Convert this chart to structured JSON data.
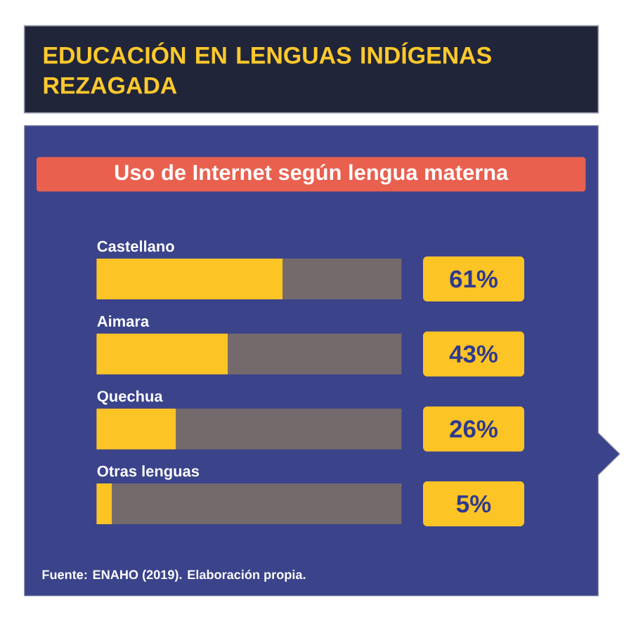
{
  "chart_data": {
    "type": "bar",
    "title": "EDUCACIÓN EN LENGUAS INDÍGENAS REZAGADA",
    "subtitle": "Uso de Internet según lengua materna",
    "categories": [
      "Castellano",
      "Aimara",
      "Quechua",
      "Otras lenguas"
    ],
    "orientation": "horizontal",
    "stacked": true,
    "series": [
      {
        "color": "#fdc426",
        "values": [
          61,
          43,
          26,
          5
        ],
        "value_labels": [
          "61%",
          "43%",
          "26%",
          "5%"
        ]
      },
      {
        "color": "#746a6b",
        "values": [
          39,
          57,
          74,
          95
        ]
      }
    ],
    "xlim": [
      0,
      100
    ],
    "tick_labels": "y",
    "annotations": [
      "Fuente: ENAHO (2019). Elaboración propia."
    ]
  }
}
